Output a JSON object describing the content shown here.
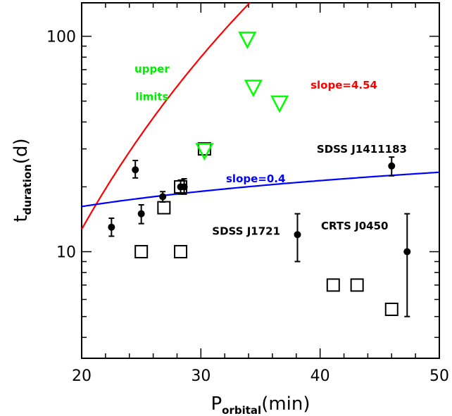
{
  "chart_data": {
    "type": "scatter",
    "title": "",
    "xlabel": {
      "main": "P",
      "sub": "orbital",
      "tail": "(min)"
    },
    "ylabel": {
      "main": "t",
      "sub": "duration",
      "tail": "(d)"
    },
    "xlim": [
      20,
      50
    ],
    "ylim": [
      3.2,
      143
    ],
    "yscale": "log",
    "x_ticks": [
      20,
      30,
      40,
      50
    ],
    "y_ticks": [
      10,
      100
    ],
    "grid": false,
    "colors": {
      "red_curve": "#ff0000",
      "blue_curve": "#0000ff",
      "upper_limits": "#00ff00",
      "points": "#000000",
      "squares": "#000000"
    },
    "series": [
      {
        "marker": "filled-circle",
        "points": [
          {
            "x": 22.5,
            "y": 13.0,
            "err_lo": 11.8,
            "err_hi": 14.3
          },
          {
            "x": 24.5,
            "y": 24.0,
            "err_lo": 22.0,
            "err_hi": 26.5
          },
          {
            "x": 25.0,
            "y": 15.0,
            "err_lo": 13.5,
            "err_hi": 16.5
          },
          {
            "x": 26.8,
            "y": 18.0,
            "err_lo": 17.0,
            "err_hi": 19.0
          },
          {
            "x": 28.3,
            "y": 20.0,
            "err_lo": 18.5,
            "err_hi": 21.5
          },
          {
            "x": 28.6,
            "y": 20.0,
            "err_lo": 18.5,
            "err_hi": 21.8
          },
          {
            "x": 38.1,
            "y": 12.0,
            "err_lo": 9.0,
            "err_hi": 15.0
          },
          {
            "x": 46.0,
            "y": 25.0,
            "err_lo": 22.5,
            "err_hi": 27.5
          },
          {
            "x": 47.3,
            "y": 10.0,
            "err_lo": 5.0,
            "err_hi": 15.0
          }
        ]
      },
      {
        "marker": "open-square",
        "points": [
          {
            "x": 25.0,
            "y": 10.0
          },
          {
            "x": 26.9,
            "y": 16.0
          },
          {
            "x": 28.3,
            "y": 20.0
          },
          {
            "x": 28.3,
            "y": 10.0
          },
          {
            "x": 30.3,
            "y": 30.0
          },
          {
            "x": 41.1,
            "y": 7.0
          },
          {
            "x": 43.1,
            "y": 7.0
          },
          {
            "x": 46.0,
            "y": 5.4
          }
        ]
      },
      {
        "marker": "open-triangle-down",
        "points": [
          {
            "x": 30.3,
            "y": 29.5
          },
          {
            "x": 33.9,
            "y": 97.0
          },
          {
            "x": 34.4,
            "y": 58.0
          },
          {
            "x": 36.6,
            "y": 49.0
          }
        ]
      }
    ],
    "curves": [
      {
        "color": "red",
        "x0": 20,
        "y0": 12.7,
        "slope": 4.54
      },
      {
        "color": "blue",
        "x0": 20,
        "y0": 16.2,
        "slope": 0.4
      }
    ],
    "annotations": [
      {
        "text": "upper",
        "x": 25.9,
        "y": 68.0,
        "color": "#00ee00"
      },
      {
        "text": "limits",
        "x": 25.9,
        "y": 50.5,
        "color": "#00ee00"
      },
      {
        "text": "slope=4.54",
        "x": 42.0,
        "y": 57.0,
        "color": "#ff0000"
      },
      {
        "text": "slope=0.4",
        "x": 34.6,
        "y": 21.0,
        "color": "#0000ff"
      },
      {
        "text": "SDSS J1411183",
        "x": 43.5,
        "y": 28.8,
        "color": "#000000"
      },
      {
        "text": "SDSS J1721",
        "x": 33.8,
        "y": 12.0,
        "color": "#000000"
      },
      {
        "text": "CRTS J0450",
        "x": 42.9,
        "y": 12.7,
        "color": "#000000"
      }
    ]
  }
}
